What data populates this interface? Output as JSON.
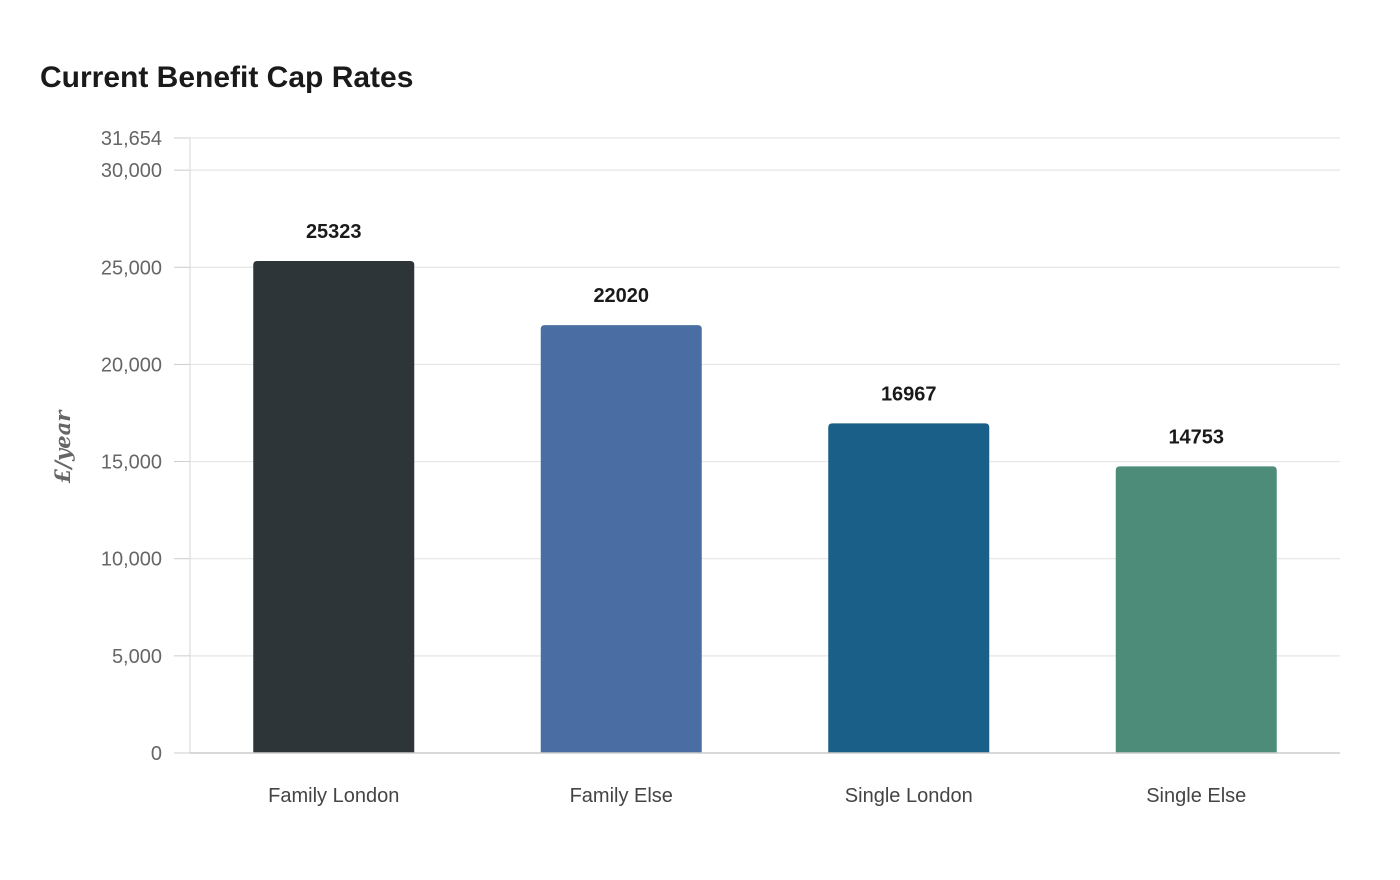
{
  "chart_data": {
    "type": "bar",
    "title": "Current Benefit Cap Rates",
    "xlabel": "",
    "ylabel": "£/year",
    "categories": [
      "Family London",
      "Family Else",
      "Single London",
      "Single Else"
    ],
    "values": [
      25323,
      22020,
      16967,
      14753
    ],
    "data_labels": [
      "25323",
      "22020",
      "16967",
      "14753"
    ],
    "ylim": [
      0,
      31654
    ],
    "y_ticks": [
      0,
      5000,
      10000,
      15000,
      20000,
      25000,
      30000,
      31654
    ],
    "y_tick_labels": [
      "0",
      "5,000",
      "10,000",
      "15,000",
      "20,000",
      "25,000",
      "30,000",
      "31,654"
    ],
    "grid": true,
    "legend": "none",
    "colors": [
      "#2d3538",
      "#4a6ea3",
      "#1a5f88",
      "#4e8c7a"
    ]
  }
}
